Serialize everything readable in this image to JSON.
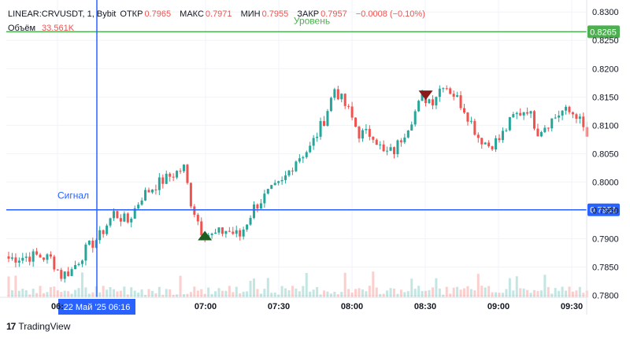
{
  "header": {
    "symbol_line": "LINEAR:CRVUSDT, 1, Bybit",
    "open_label": "ОТКР",
    "open_value": "0.7965",
    "high_label": "МАКС",
    "high_value": "0.7971",
    "low_label": "МИН",
    "low_value": "0.7955",
    "close_label": "ЗАКР",
    "close_value": "0.7957",
    "change_value": "−0.0008 (−0.10%)",
    "volume_label": "Объём",
    "volume_value": "33.561K"
  },
  "footer": {
    "logo_text": "17",
    "brand": "TradingView"
  },
  "chart_data": {
    "type": "candlestick",
    "x_ticks": [
      "06:",
      "07:00",
      "07:30",
      "08:00",
      "08:30",
      "09:00",
      "09:30"
    ],
    "crosshair_label": "22 Май '25   06:16",
    "y_ticks": [
      "0.8300",
      "0.8250",
      "0.8200",
      "0.8150",
      "0.8100",
      "0.8050",
      "0.8000",
      "0.7950",
      "0.7900",
      "0.7850",
      "0.7800"
    ],
    "ylim": [
      0.7798,
      0.831
    ],
    "levels": [
      {
        "price": 0.8265,
        "label": "Уровень",
        "color": "#4caf50"
      },
      {
        "price": 0.7951,
        "label": "Сигнал",
        "color": "#2962ff"
      }
    ],
    "marker_up": {
      "time_index": 56,
      "price": 0.7907
    },
    "marker_down": {
      "time_index": 119,
      "price": 0.8153
    },
    "colors": {
      "up": "#26a69a",
      "down": "#ef5350",
      "grid": "#f0f3fa",
      "axis_text": "#131722"
    },
    "path_points": [
      [
        0,
        0.7865
      ],
      [
        8,
        0.787
      ],
      [
        12,
        0.7865
      ],
      [
        15,
        0.7835
      ],
      [
        18,
        0.7845
      ],
      [
        22,
        0.788
      ],
      [
        26,
        0.7905
      ],
      [
        30,
        0.7945
      ],
      [
        34,
        0.793
      ],
      [
        38,
        0.7975
      ],
      [
        42,
        0.7995
      ],
      [
        46,
        0.801
      ],
      [
        50,
        0.8025
      ],
      [
        52,
        0.7965
      ],
      [
        55,
        0.7915
      ],
      [
        58,
        0.7905
      ],
      [
        62,
        0.7915
      ],
      [
        66,
        0.7905
      ],
      [
        70,
        0.7955
      ],
      [
        74,
        0.798
      ],
      [
        78,
        0.7998
      ],
      [
        82,
        0.804
      ],
      [
        86,
        0.806
      ],
      [
        90,
        0.811
      ],
      [
        93,
        0.8165
      ],
      [
        97,
        0.8125
      ],
      [
        100,
        0.8085
      ],
      [
        104,
        0.8085
      ],
      [
        107,
        0.805
      ],
      [
        110,
        0.8055
      ],
      [
        114,
        0.81
      ],
      [
        118,
        0.8148
      ],
      [
        121,
        0.8145
      ],
      [
        124,
        0.8175
      ],
      [
        127,
        0.8155
      ],
      [
        130,
        0.813
      ],
      [
        134,
        0.808
      ],
      [
        137,
        0.8065
      ],
      [
        140,
        0.8075
      ],
      [
        144,
        0.8115
      ],
      [
        148,
        0.813
      ],
      [
        151,
        0.809
      ],
      [
        155,
        0.811
      ],
      [
        158,
        0.8125
      ],
      [
        162,
        0.812
      ],
      [
        165,
        0.808
      ]
    ]
  }
}
